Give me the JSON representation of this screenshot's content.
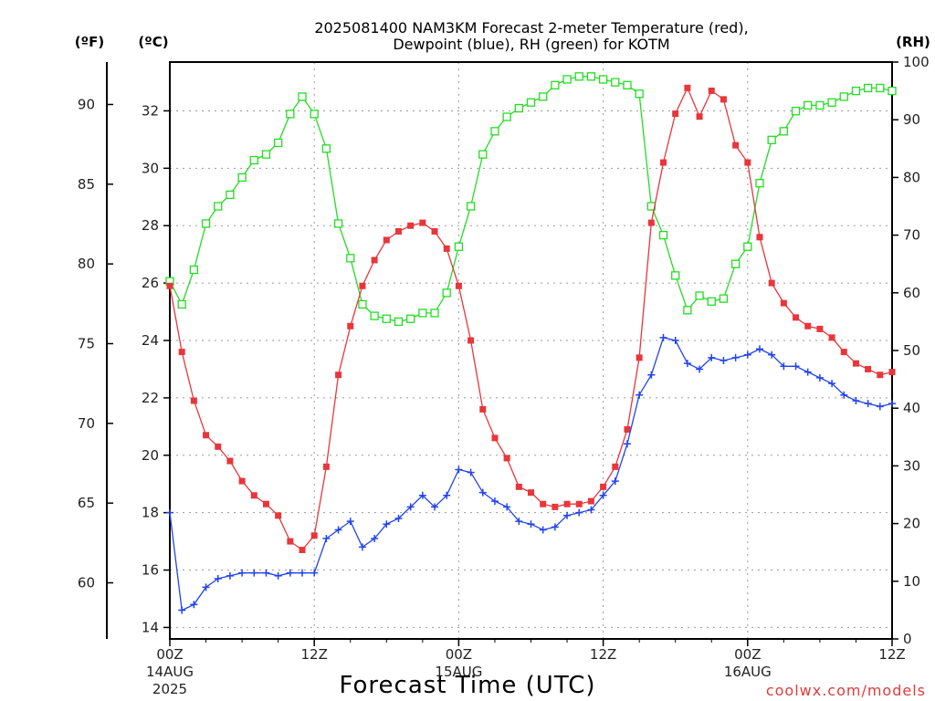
{
  "chart_data": {
    "type": "line",
    "title": {
      "line1": "2025081400 NAM3KM Forecast 2-meter Temperature (red),",
      "line2": "Dewpoint (blue), RH (green) for KOTM"
    },
    "xlabel": "Forecast Time (UTC)",
    "credit": "coolwx.com/models",
    "axis_units": {
      "fahrenheit": "(ºF)",
      "celsius": "(ºC)",
      "rh": "(RH)"
    },
    "x_ticks": [
      {
        "hour": 0,
        "label": "00Z",
        "date": "14AUG",
        "year": "2025"
      },
      {
        "hour": 12,
        "label": "12Z",
        "date": "",
        "year": ""
      },
      {
        "hour": 24,
        "label": "00Z",
        "date": "15AUG",
        "year": ""
      },
      {
        "hour": 36,
        "label": "12Z",
        "date": "",
        "year": ""
      },
      {
        "hour": 48,
        "label": "00Z",
        "date": "16AUG",
        "year": ""
      },
      {
        "hour": 60,
        "label": "12Z",
        "date": "",
        "year": ""
      }
    ],
    "xlim_hours": [
      0,
      60
    ],
    "celsius_ticks": [
      "14",
      "16",
      "18",
      "20",
      "22",
      "24",
      "26",
      "28",
      "30",
      "32"
    ],
    "fahrenheit_ticks": [
      "60",
      "65",
      "70",
      "75",
      "80",
      "85",
      "90"
    ],
    "rh_ticks": [
      "0",
      "10",
      "20",
      "30",
      "40",
      "50",
      "60",
      "70",
      "80",
      "90",
      "100"
    ],
    "celsius_range": [
      13.6,
      33.7
    ],
    "rh_range": [
      0,
      100
    ],
    "grid": true,
    "series": [
      {
        "key": "temp",
        "color": "#e8363b",
        "marker": "filled-square",
        "axis": "celsius",
        "values": [
          25.9,
          23.6,
          21.9,
          20.7,
          20.3,
          19.8,
          19.1,
          18.6,
          18.3,
          17.9,
          17.0,
          16.7,
          17.2,
          19.6,
          22.8,
          24.5,
          25.9,
          26.8,
          27.5,
          27.8,
          28.0,
          28.1,
          27.8,
          27.2,
          25.9,
          24.0,
          21.6,
          20.6,
          19.9,
          18.9,
          18.7,
          18.3,
          18.2,
          18.3,
          18.3,
          18.4,
          18.9,
          19.6,
          20.9,
          23.4,
          28.1,
          30.2,
          31.9,
          32.8,
          31.8,
          32.7,
          32.4,
          30.8,
          30.2,
          27.6,
          26.0,
          25.3,
          24.8,
          24.5,
          24.4,
          24.1,
          23.6,
          23.2,
          23.0,
          22.8,
          22.9
        ]
      },
      {
        "key": "dewpoint",
        "color": "#2244ee",
        "marker": "plus",
        "axis": "celsius",
        "values": [
          18.0,
          14.6,
          14.8,
          15.4,
          15.7,
          15.8,
          15.9,
          15.9,
          15.9,
          15.8,
          15.9,
          15.9,
          15.9,
          17.1,
          17.4,
          17.7,
          16.8,
          17.1,
          17.6,
          17.8,
          18.2,
          18.6,
          18.2,
          18.6,
          19.5,
          19.4,
          18.7,
          18.4,
          18.2,
          17.7,
          17.6,
          17.4,
          17.5,
          17.9,
          18.0,
          18.1,
          18.6,
          19.1,
          20.4,
          22.1,
          22.8,
          24.1,
          24.0,
          23.2,
          23.0,
          23.4,
          23.3,
          23.4,
          23.5,
          23.7,
          23.5,
          23.1,
          23.1,
          22.9,
          22.7,
          22.5,
          22.1,
          21.9,
          21.8,
          21.7,
          21.8
        ]
      },
      {
        "key": "rh",
        "color": "#22dd22",
        "marker": "open-square",
        "axis": "rh",
        "values": [
          62,
          58,
          64,
          72,
          75,
          77,
          80,
          83,
          84,
          86,
          91,
          94,
          91,
          85,
          72,
          66,
          58,
          56,
          55.5,
          55,
          55.5,
          56.5,
          56.5,
          60,
          68,
          75,
          84,
          88,
          90.5,
          92,
          93,
          94,
          96,
          97,
          97.5,
          97.5,
          97,
          96.5,
          96,
          94.5,
          75,
          70,
          63,
          57,
          59.5,
          58.5,
          59,
          65,
          68,
          79,
          86.5,
          88,
          91.5,
          92.5,
          92.5,
          93,
          94,
          95,
          95.5,
          95.5,
          95
        ]
      }
    ]
  }
}
